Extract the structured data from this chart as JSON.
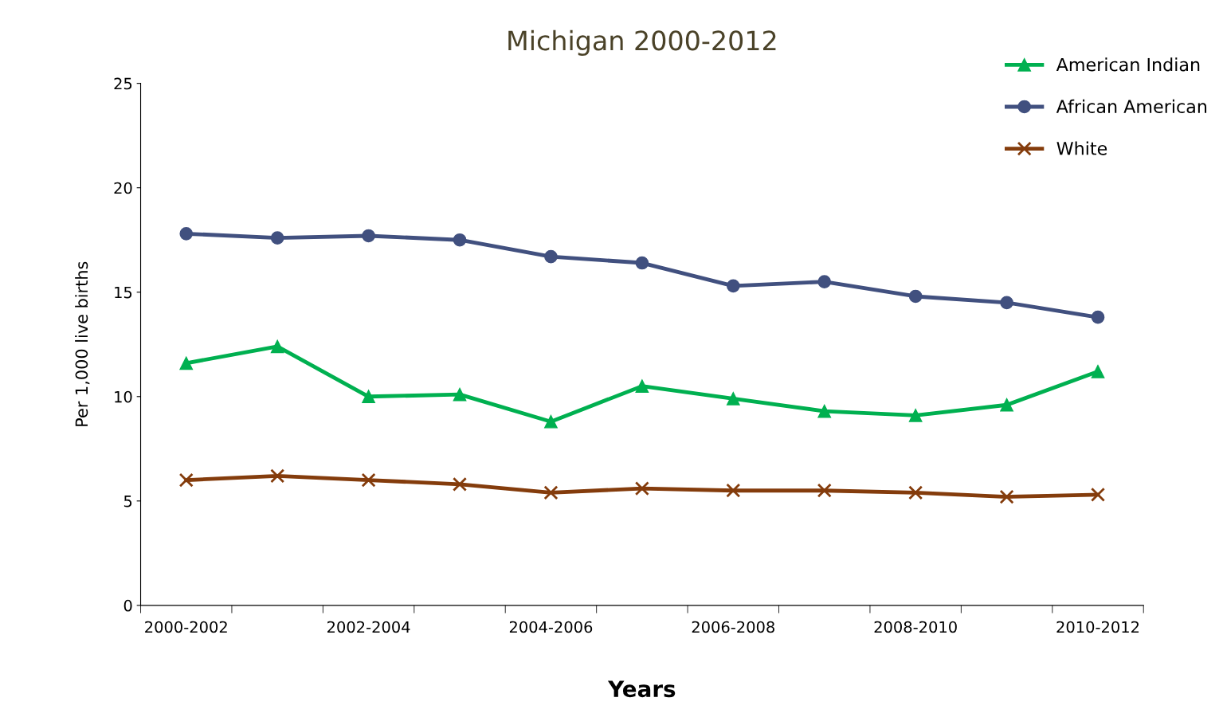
{
  "chart_data": {
    "type": "line",
    "title": "Michigan 2000-2012",
    "xlabel": "Years",
    "ylabel": "Per 1,000 live births",
    "categories": [
      "2000-2002",
      null,
      "2002-2004",
      null,
      "2004-2006",
      null,
      "2006-2008",
      null,
      "2008-2010",
      null,
      "2010-2012"
    ],
    "series": [
      {
        "name": "American Indian",
        "color": "#00b050",
        "marker": "triangle",
        "values": [
          11.6,
          12.4,
          10.0,
          10.1,
          8.8,
          10.5,
          9.9,
          9.3,
          9.1,
          9.6,
          11.2
        ]
      },
      {
        "name": "African American",
        "color": "#41507f",
        "marker": "circle",
        "values": [
          17.8,
          17.6,
          17.7,
          17.5,
          16.7,
          16.4,
          15.3,
          15.5,
          14.8,
          14.5,
          13.8
        ]
      },
      {
        "name": "White",
        "color": "#843c0c",
        "marker": "cross",
        "values": [
          6.0,
          6.2,
          6.0,
          5.8,
          5.4,
          5.6,
          5.5,
          5.5,
          5.4,
          5.2,
          5.3
        ]
      }
    ],
    "ylim": [
      0,
      25
    ],
    "yticks": [
      0,
      5,
      10,
      15,
      20,
      25
    ],
    "grid": false,
    "legend": "top right",
    "line_style": "solid"
  }
}
